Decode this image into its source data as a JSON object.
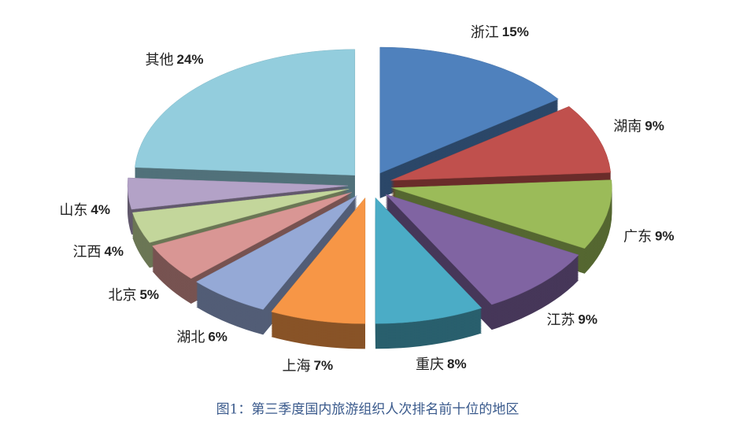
{
  "chart_data": {
    "type": "pie",
    "title": "图1：第三季度国内旅游组织人次排名前十位的地区",
    "categories": [
      "浙江",
      "湖南",
      "广东",
      "江苏",
      "重庆",
      "上海",
      "湖北",
      "北京",
      "江西",
      "山东",
      "其他"
    ],
    "values": [
      15,
      9,
      9,
      9,
      8,
      7,
      6,
      5,
      4,
      4,
      24
    ],
    "value_labels": [
      "15%",
      "9%",
      "9%",
      "9%",
      "8%",
      "7%",
      "6%",
      "5%",
      "4%",
      "4%",
      "24%"
    ],
    "colors": [
      "#4f81bd",
      "#c0504d",
      "#9bbb59",
      "#8064a2",
      "#4bacc6",
      "#f79646",
      "#95a9d6",
      "#d99694",
      "#c3d69b",
      "#b3a2c7",
      "#93cddd"
    ]
  }
}
